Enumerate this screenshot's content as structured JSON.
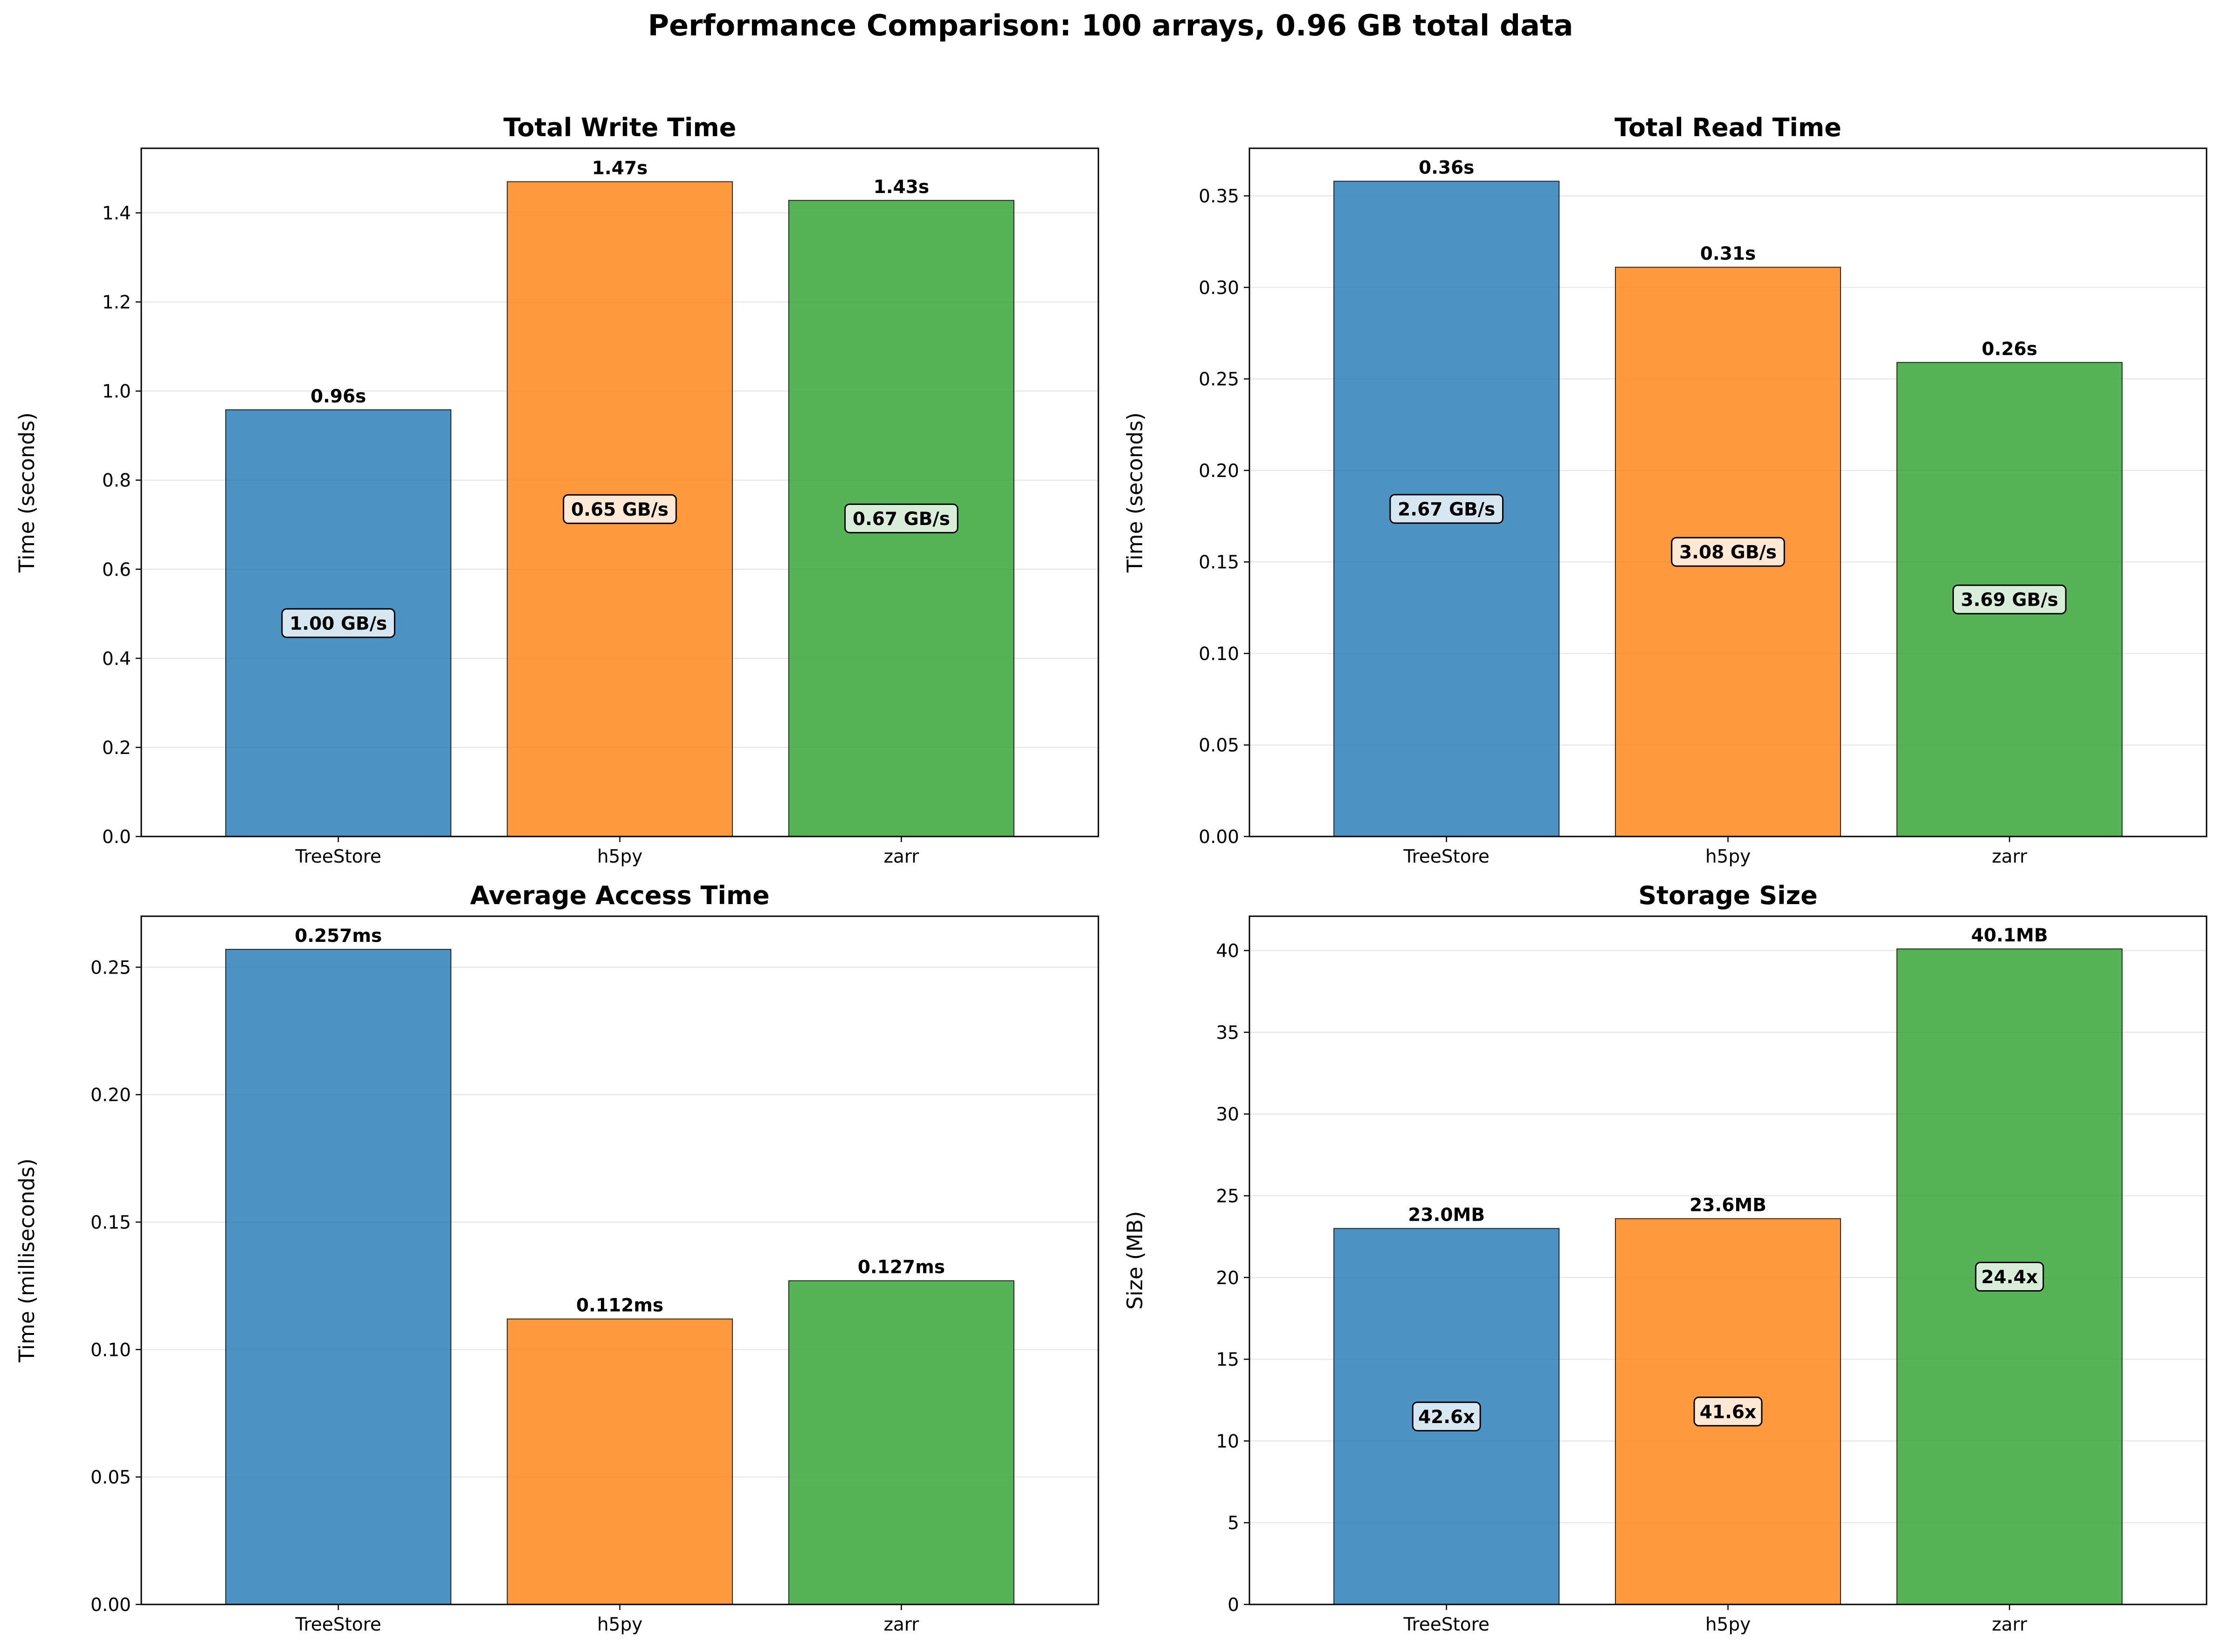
{
  "figure": {
    "suptitle": "Performance Comparison: 100 arrays, 0.96 GB total data"
  },
  "colors": {
    "TreeStore": "#1f77b4",
    "h5py": "#ff7f0e",
    "zarr": "#2ca02c"
  },
  "chart_data": [
    {
      "type": "bar",
      "title": "Total Write Time",
      "xlabel": "",
      "ylabel": "Time (seconds)",
      "categories": [
        "TreeStore",
        "h5py",
        "zarr"
      ],
      "values": [
        0.958,
        1.47,
        1.428
      ],
      "value_labels": [
        "0.96s",
        "1.47s",
        "1.43s"
      ],
      "inner_labels": [
        "1.00 GB/s",
        "0.65 GB/s",
        "0.67 GB/s"
      ],
      "ylim": [
        0,
        1.545
      ],
      "yticks": [
        0.0,
        0.2,
        0.4,
        0.6,
        0.8,
        1.0,
        1.2,
        1.4
      ],
      "ytick_labels": [
        "0.0",
        "0.2",
        "0.4",
        "0.6",
        "0.8",
        "1.0",
        "1.2",
        "1.4"
      ],
      "grid": "y",
      "legend": "none"
    },
    {
      "type": "bar",
      "title": "Total Read Time",
      "xlabel": "",
      "ylabel": "Time (seconds)",
      "categories": [
        "TreeStore",
        "h5py",
        "zarr"
      ],
      "values": [
        0.358,
        0.311,
        0.259
      ],
      "value_labels": [
        "0.36s",
        "0.31s",
        "0.26s"
      ],
      "inner_labels": [
        "2.67 GB/s",
        "3.08 GB/s",
        "3.69 GB/s"
      ],
      "ylim": [
        0,
        0.376
      ],
      "yticks": [
        0.0,
        0.05,
        0.1,
        0.15,
        0.2,
        0.25,
        0.3,
        0.35
      ],
      "ytick_labels": [
        "0.00",
        "0.05",
        "0.10",
        "0.15",
        "0.20",
        "0.25",
        "0.30",
        "0.35"
      ],
      "grid": "y",
      "legend": "none"
    },
    {
      "type": "bar",
      "title": "Average Access Time",
      "xlabel": "",
      "ylabel": "Time (milliseconds)",
      "categories": [
        "TreeStore",
        "h5py",
        "zarr"
      ],
      "values": [
        0.257,
        0.112,
        0.127
      ],
      "value_labels": [
        "0.257ms",
        "0.112ms",
        "0.127ms"
      ],
      "inner_labels": [
        "",
        "",
        ""
      ],
      "ylim": [
        0,
        0.27
      ],
      "yticks": [
        0.0,
        0.05,
        0.1,
        0.15,
        0.2,
        0.25
      ],
      "ytick_labels": [
        "0.00",
        "0.05",
        "0.10",
        "0.15",
        "0.20",
        "0.25"
      ],
      "grid": "y",
      "legend": "none"
    },
    {
      "type": "bar",
      "title": "Storage Size",
      "xlabel": "",
      "ylabel": "Size (MB)",
      "categories": [
        "TreeStore",
        "h5py",
        "zarr"
      ],
      "values": [
        23.0,
        23.6,
        40.1
      ],
      "value_labels": [
        "23.0MB",
        "23.6MB",
        "40.1MB"
      ],
      "inner_labels": [
        "42.6x",
        "41.6x",
        "24.4x"
      ],
      "ylim": [
        0,
        42.1
      ],
      "yticks": [
        0,
        5,
        10,
        15,
        20,
        25,
        30,
        35,
        40
      ],
      "ytick_labels": [
        "0",
        "5",
        "10",
        "15",
        "20",
        "25",
        "30",
        "35",
        "40"
      ],
      "grid": "y",
      "legend": "none"
    }
  ]
}
